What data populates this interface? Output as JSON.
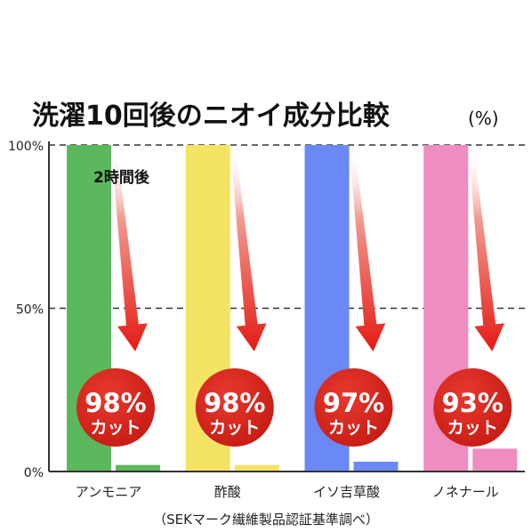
{
  "chart_data": {
    "type": "bar",
    "title": "洗濯10回後のニオイ成分比較",
    "title_unit": "(%)",
    "categories": [
      "アンモニア",
      "酢酸",
      "イソ吉草酸",
      "ノネナール"
    ],
    "series": [
      {
        "values": [
          100,
          100,
          100,
          100
        ]
      },
      {
        "values": [
          2,
          2,
          3,
          7
        ]
      }
    ],
    "colors": [
      "#5cb85c",
      "#f5e463",
      "#6a89f5",
      "#ef8cc0"
    ],
    "after_colors": [
      "#5cb85c",
      "#f5e463",
      "#6a89f5",
      "#ef8cc0"
    ],
    "reduction_labels": [
      "98%",
      "98%",
      "97%",
      "93%"
    ],
    "reduction_suffix": "カット",
    "badge_color": "#d9261c",
    "note": "2時間後",
    "yticks": [
      {
        "label": "100%",
        "value": 100
      },
      {
        "label": "50%",
        "value": 50
      },
      {
        "label": "0%",
        "value": 0
      }
    ],
    "ylim": [
      0,
      100
    ],
    "grid": "dashed at 50% and 100%",
    "source": "（SEKマーク繊維製品認証基準調べ）"
  }
}
